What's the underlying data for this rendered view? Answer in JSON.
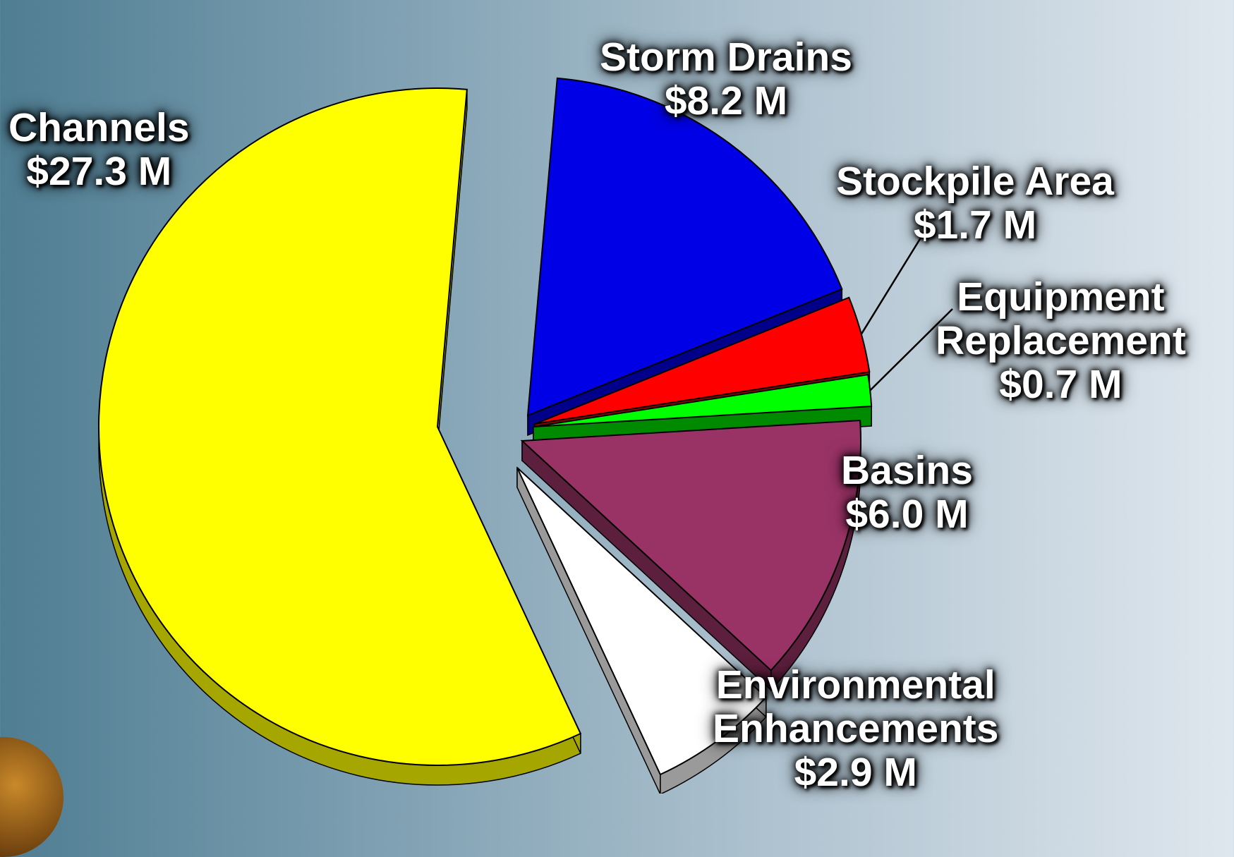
{
  "chart_data": {
    "type": "pie",
    "style": "3d-exploded",
    "unit": "$ M",
    "slices": [
      {
        "name": "Storm Drains",
        "value_label": "$8.2 M",
        "value": 8.2,
        "color": "#0000e6",
        "side_color": "#00008a"
      },
      {
        "name": "Stockpile Area",
        "value_label": "$1.7 M",
        "value": 1.7,
        "color": "#ff0000",
        "side_color": "#9a0000"
      },
      {
        "name": "Equipment Replacement",
        "value_label": "$0.7 M",
        "value": 0.7,
        "color": "#00ff00",
        "side_color": "#008a00"
      },
      {
        "name": "Basins",
        "value_label": "$6.0 M",
        "value": 6.0,
        "color": "#993366",
        "side_color": "#5c1f3d"
      },
      {
        "name": "Environmental Enhancements",
        "value_label": "$2.9 M",
        "value": 2.9,
        "color": "#ffffff",
        "side_color": "#9a9a9a"
      },
      {
        "name": "Channels",
        "value_label": "$27.3 M",
        "value": 27.3,
        "color": "#ffff00",
        "side_color": "#a6a600"
      }
    ],
    "labels": {
      "storm_drains": {
        "line1": "Storm Drains",
        "line2": "$8.2 M"
      },
      "stockpile": {
        "line1": "Stockpile Area",
        "line2": "$1.7 M"
      },
      "equipment": {
        "line1": "Equipment",
        "line2": "Replacement",
        "line3": "$0.7 M"
      },
      "basins": {
        "line1": "Basins",
        "line2": "$6.0 M"
      },
      "environmental": {
        "line1": "Environmental",
        "line2": "Enhancements",
        "line3": "$2.9 M"
      },
      "channels": {
        "line1": "Channels",
        "line2": "$27.3 M"
      }
    }
  }
}
